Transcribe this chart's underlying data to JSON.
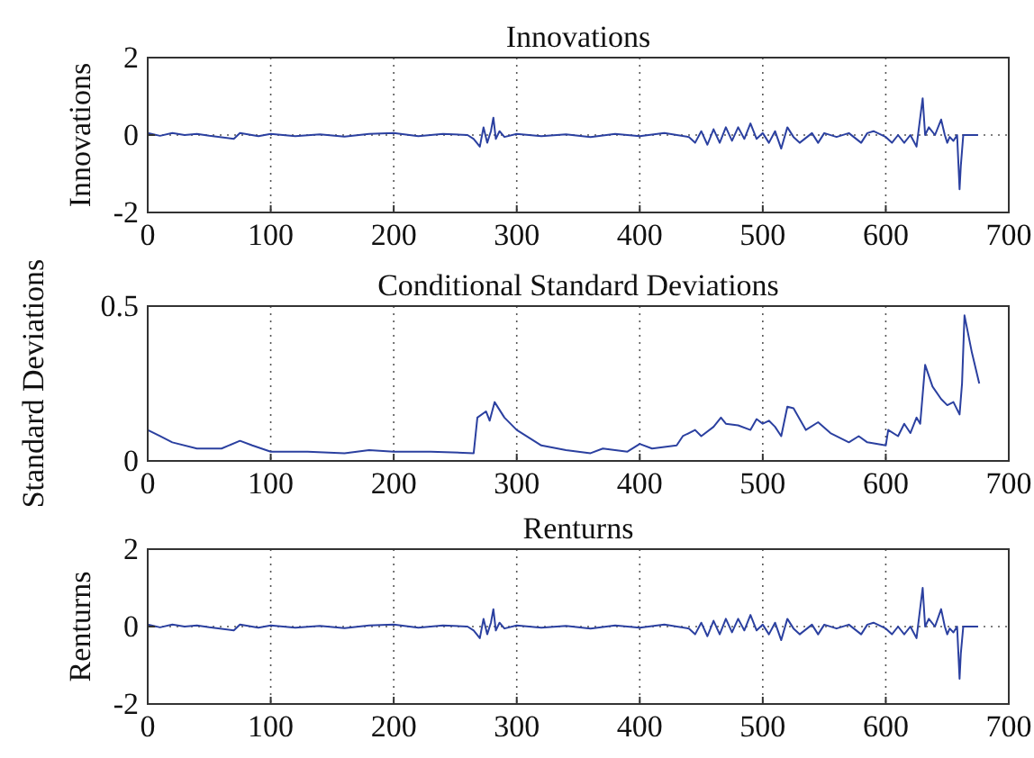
{
  "chart_data": [
    {
      "type": "line",
      "title": "Innovations",
      "ylabel": "Innovations",
      "xlim": [
        0,
        700
      ],
      "xticks": [
        0,
        100,
        200,
        300,
        400,
        500,
        600,
        700
      ],
      "ylim": [
        -2,
        2
      ],
      "yticks": [
        -2,
        0,
        2
      ],
      "grid": true,
      "line_style": "solid",
      "marker": "none",
      "series": [
        {
          "color": "#2b40a0",
          "x": [
            0,
            10,
            20,
            30,
            40,
            50,
            70,
            75,
            90,
            100,
            120,
            140,
            160,
            180,
            200,
            220,
            240,
            260,
            265,
            270,
            273,
            276,
            279,
            281,
            283,
            286,
            290,
            300,
            320,
            340,
            360,
            380,
            400,
            420,
            440,
            445,
            450,
            455,
            460,
            465,
            470,
            475,
            480,
            485,
            490,
            495,
            500,
            505,
            510,
            515,
            520,
            525,
            530,
            540,
            545,
            550,
            560,
            570,
            580,
            585,
            590,
            600,
            605,
            610,
            615,
            620,
            625,
            630,
            632,
            635,
            640,
            645,
            648,
            650,
            652,
            655,
            658,
            660,
            661,
            663,
            670,
            675
          ],
          "values": [
            0.05,
            -0.02,
            0.05,
            0,
            0.03,
            -0.02,
            -0.1,
            0.05,
            -0.03,
            0.03,
            -0.03,
            0.02,
            -0.04,
            0.03,
            0.05,
            -0.03,
            0.03,
            0,
            -0.1,
            -0.3,
            0.2,
            -0.2,
            0.1,
            0.45,
            -0.1,
            0.1,
            -0.05,
            0.03,
            -0.03,
            0.02,
            -0.05,
            0.03,
            -0.03,
            0.05,
            -0.05,
            -0.2,
            0.1,
            -0.25,
            0.15,
            -0.2,
            0.2,
            -0.15,
            0.2,
            -0.1,
            0.3,
            -0.1,
            0.05,
            -0.2,
            0.1,
            -0.35,
            0.2,
            -0.05,
            -0.2,
            0.05,
            -0.2,
            0.05,
            -0.05,
            0.05,
            -0.2,
            0.05,
            0.1,
            -0.05,
            -0.2,
            0,
            -0.2,
            0,
            -0.3,
            0.95,
            0,
            0.2,
            0,
            0.4,
            0,
            -0.2,
            -0.05,
            -0.15,
            0,
            -1.4,
            -0.8,
            0,
            0,
            0
          ]
        }
      ]
    },
    {
      "type": "line",
      "title": "Conditional Standard Deviations",
      "ylabel": "Standard Deviations",
      "xlim": [
        0,
        700
      ],
      "xticks": [
        0,
        100,
        200,
        300,
        400,
        500,
        600,
        700
      ],
      "ylim": [
        0,
        0.5
      ],
      "yticks": [
        0,
        0.5
      ],
      "grid": true,
      "line_style": "solid",
      "marker": "none",
      "series": [
        {
          "color": "#2b40a0",
          "x": [
            0,
            10,
            20,
            40,
            60,
            75,
            85,
            100,
            130,
            160,
            180,
            200,
            230,
            265,
            268,
            275,
            278,
            282,
            290,
            300,
            320,
            340,
            360,
            370,
            390,
            400,
            410,
            430,
            435,
            445,
            450,
            460,
            466,
            470,
            480,
            490,
            495,
            500,
            505,
            510,
            515,
            520,
            525,
            535,
            545,
            555,
            570,
            578,
            585,
            600,
            602,
            610,
            615,
            620,
            625,
            628,
            632,
            638,
            645,
            650,
            655,
            660,
            662,
            664,
            670,
            676
          ],
          "values": [
            0.1,
            0.08,
            0.06,
            0.04,
            0.04,
            0.065,
            0.05,
            0.03,
            0.03,
            0.025,
            0.035,
            0.03,
            0.03,
            0.025,
            0.14,
            0.16,
            0.13,
            0.19,
            0.14,
            0.1,
            0.05,
            0.035,
            0.025,
            0.04,
            0.03,
            0.055,
            0.04,
            0.05,
            0.08,
            0.1,
            0.08,
            0.11,
            0.14,
            0.12,
            0.115,
            0.1,
            0.135,
            0.12,
            0.13,
            0.11,
            0.08,
            0.175,
            0.17,
            0.1,
            0.125,
            0.09,
            0.06,
            0.08,
            0.06,
            0.05,
            0.1,
            0.08,
            0.12,
            0.09,
            0.14,
            0.12,
            0.31,
            0.24,
            0.2,
            0.18,
            0.19,
            0.15,
            0.25,
            0.47,
            0.35,
            0.25
          ]
        }
      ]
    },
    {
      "type": "line",
      "title": "Renturns",
      "ylabel": "Renturns",
      "xlim": [
        0,
        700
      ],
      "xticks": [
        0,
        100,
        200,
        300,
        400,
        500,
        600,
        700
      ],
      "ylim": [
        -2,
        2
      ],
      "yticks": [
        -2,
        0,
        2
      ],
      "grid": true,
      "line_style": "solid",
      "marker": "none",
      "series": [
        {
          "color": "#2b40a0",
          "x": [
            0,
            10,
            20,
            30,
            40,
            50,
            70,
            75,
            90,
            100,
            120,
            140,
            160,
            180,
            200,
            220,
            240,
            260,
            265,
            270,
            273,
            276,
            279,
            281,
            283,
            286,
            290,
            300,
            320,
            340,
            360,
            380,
            400,
            420,
            440,
            445,
            450,
            455,
            460,
            465,
            470,
            475,
            480,
            485,
            490,
            495,
            500,
            505,
            510,
            515,
            520,
            525,
            530,
            540,
            545,
            550,
            560,
            570,
            580,
            585,
            590,
            600,
            605,
            610,
            615,
            620,
            625,
            630,
            632,
            635,
            640,
            645,
            648,
            650,
            652,
            655,
            658,
            660,
            661,
            663,
            670,
            675
          ],
          "values": [
            0.05,
            -0.02,
            0.05,
            0,
            0.03,
            -0.02,
            -0.1,
            0.05,
            -0.03,
            0.03,
            -0.03,
            0.02,
            -0.04,
            0.03,
            0.05,
            -0.03,
            0.03,
            0,
            -0.1,
            -0.3,
            0.2,
            -0.2,
            0.1,
            0.45,
            -0.1,
            0.1,
            -0.05,
            0.03,
            -0.03,
            0.02,
            -0.05,
            0.03,
            -0.03,
            0.05,
            -0.05,
            -0.2,
            0.1,
            -0.25,
            0.15,
            -0.2,
            0.2,
            -0.15,
            0.2,
            -0.1,
            0.3,
            -0.1,
            0.05,
            -0.2,
            0.1,
            -0.35,
            0.2,
            -0.05,
            -0.2,
            0.05,
            -0.2,
            0.05,
            -0.05,
            0.05,
            -0.2,
            0.05,
            0.1,
            -0.05,
            -0.2,
            0,
            -0.2,
            0,
            -0.3,
            1.0,
            0,
            0.2,
            0,
            0.45,
            0,
            -0.2,
            -0.05,
            -0.15,
            0,
            -1.35,
            -0.7,
            0,
            0,
            0
          ]
        }
      ]
    }
  ]
}
